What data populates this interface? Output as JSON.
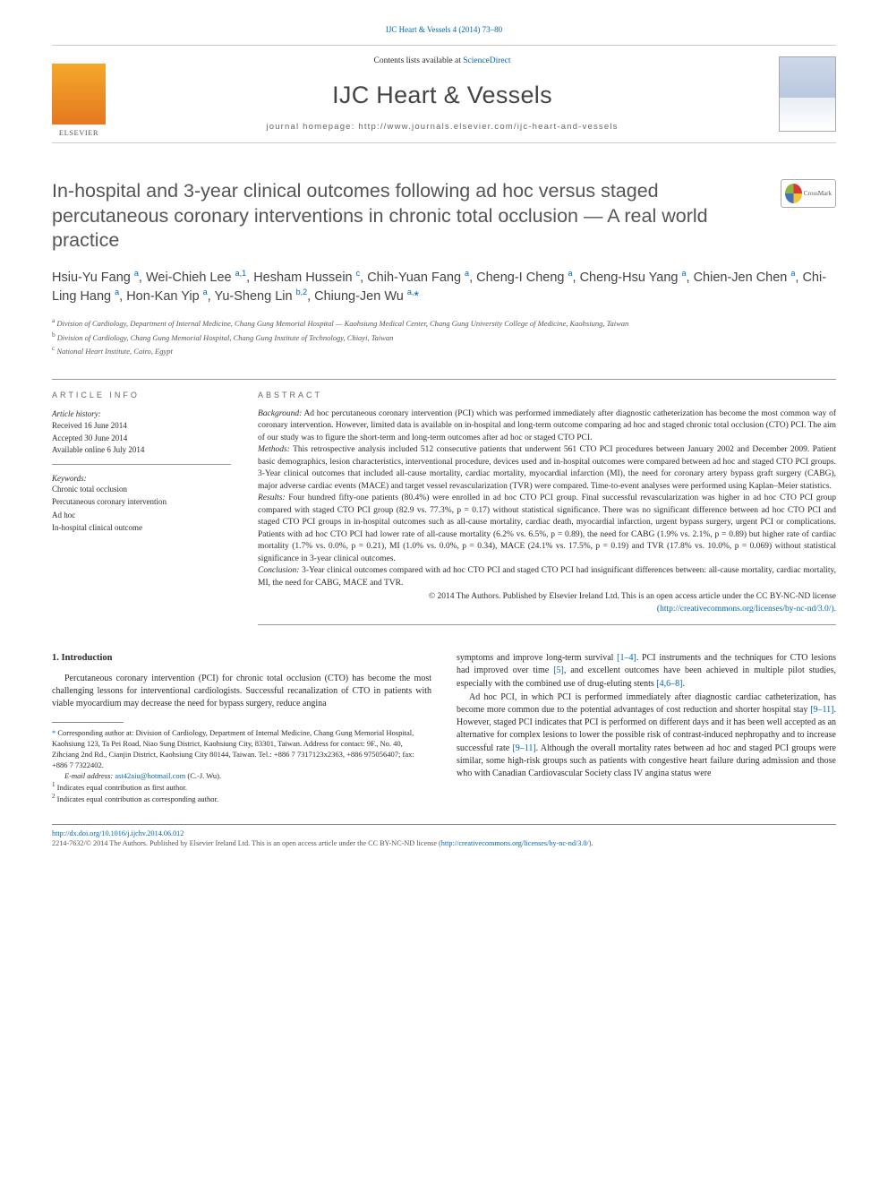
{
  "top_link": "IJC Heart & Vessels 4 (2014) 73–80",
  "header": {
    "contents_prefix": "Contents lists available at ",
    "science_direct": "ScienceDirect",
    "journal_name": "IJC Heart & Vessels",
    "homepage_prefix": "journal homepage: ",
    "homepage_url": "http://www.journals.elsevier.com/ijc-heart-and-vessels"
  },
  "crossmark_label": "CrossMark",
  "title": "In-hospital and 3-year clinical outcomes following ad hoc versus staged percutaneous coronary interventions in chronic total occlusion — A real world practice",
  "authors_html": "Hsiu-Yu Fang <sup>a</sup>, Wei-Chieh Lee <sup>a,1</sup>, Hesham Hussein <sup>c</sup>, Chih-Yuan Fang <sup>a</sup>, Cheng-I Cheng <sup>a</sup>, Cheng-Hsu Yang <sup>a</sup>, Chien-Jen Chen <sup>a</sup>, Chi-Ling Hang <sup>a</sup>, Hon-Kan Yip <sup>a</sup>, Yu-Sheng Lin <sup>b,2</sup>, Chiung-Jen Wu <sup>a,</sup><span class='star-sup'>*</span>",
  "affiliations": [
    {
      "key": "a",
      "text": "Division of Cardiology, Department of Internal Medicine, Chang Gung Memorial Hospital — Kaohsiung Medical Center, Chang Gung University College of Medicine, Kaohsiung, Taiwan"
    },
    {
      "key": "b",
      "text": "Division of Cardiology, Chang Gung Memorial Hospital, Chang Gung Institute of Technology, Chiayi, Taiwan"
    },
    {
      "key": "c",
      "text": "National Heart Institute, Cairo, Egypt"
    }
  ],
  "article_info": {
    "heading": "ARTICLE INFO",
    "history_label": "Article history:",
    "received": "Received 16 June 2014",
    "accepted": "Accepted 30 June 2014",
    "online": "Available online 6 July 2014",
    "keywords_label": "Keywords:",
    "keywords": [
      "Chronic total occlusion",
      "Percutaneous coronary intervention",
      "Ad hoc",
      "In-hospital clinical outcome"
    ]
  },
  "abstract": {
    "heading": "ABSTRACT",
    "background_label": "Background:",
    "background": " Ad hoc percutaneous coronary intervention (PCI) which was performed immediately after diagnostic catheterization has become the most common way of coronary intervention. However, limited data is available on in-hospital and long-term outcome comparing ad hoc and staged chronic total occlusion (CTO) PCI. The aim of our study was to figure the short-term and long-term outcomes after ad hoc or staged CTO PCI.",
    "methods_label": "Methods:",
    "methods": " This retrospective analysis included 512 consecutive patients that underwent 561 CTO PCI procedures between January 2002 and December 2009. Patient basic demographics, lesion characteristics, interventional procedure, devices used and in-hospital outcomes were compared between ad hoc and staged CTO PCI groups. 3-Year clinical outcomes that included all-cause mortality, cardiac mortality, myocardial infarction (MI), the need for coronary artery bypass graft surgery (CABG), major adverse cardiac events (MACE) and target vessel revascularization (TVR) were compared. Time-to-event analyses were performed using Kaplan–Meier statistics.",
    "results_label": "Results:",
    "results": " Four hundred fifty-one patients (80.4%) were enrolled in ad hoc CTO PCI group. Final successful revascularization was higher in ad hoc CTO PCI group compared with staged CTO PCI group (82.9 vs. 77.3%, p = 0.17) without statistical significance. There was no significant difference between ad hoc CTO PCI and staged CTO PCI groups in in-hospital outcomes such as all-cause mortality, cardiac death, myocardial infarction, urgent bypass surgery, urgent PCI or complications. Patients with ad hoc CTO PCI had lower rate of all-cause mortality (6.2% vs. 6.5%, p = 0.89), the need for CABG (1.9% vs. 2.1%, p = 0.89) but higher rate of cardiac mortality (1.7% vs. 0.0%, p = 0.21), MI (1.0% vs. 0.0%, p = 0.34), MACE (24.1% vs. 17.5%, p = 0.19) and TVR (17.8% vs. 10.0%, p = 0.069) without statistical significance in 3-year clinical outcomes.",
    "conclusion_label": "Conclusion:",
    "conclusion": " 3-Year clinical outcomes compared with ad hoc CTO PCI and staged CTO PCI had insignificant differences between: all-cause mortality, cardiac mortality, MI, the need for CABG, MACE and TVR.",
    "copyright": "© 2014 The Authors. Published by Elsevier Ireland Ltd. This is an open access article under the CC BY-NC-ND license",
    "license_url": "(http://creativecommons.org/licenses/by-nc-nd/3.0/)."
  },
  "section1_title": "1. Introduction",
  "col_left_p1": "Percutaneous coronary intervention (PCI) for chronic total occlusion (CTO) has become the most challenging lessons for interventional cardiologists. Successful recanalization of CTO in patients with viable myocardium may decrease the need for bypass surgery, reduce angina",
  "col_right_p1_a": "symptoms and improve long-term survival ",
  "col_right_p1_ref1": "[1–4]",
  "col_right_p1_b": ". PCI instruments and the techniques for CTO lesions had improved over time ",
  "col_right_p1_ref2": "[5]",
  "col_right_p1_c": ", and excellent outcomes have been achieved in multiple pilot studies, especially with the combined use of drug-eluting stents ",
  "col_right_p1_ref3": "[4,6–8]",
  "col_right_p1_d": ".",
  "col_right_p2_a": "Ad hoc PCI, in which PCI is performed immediately after diagnostic cardiac catheterization, has become more common due to the potential advantages of cost reduction and shorter hospital stay ",
  "col_right_p2_ref1": "[9–11]",
  "col_right_p2_b": ". However, staged PCI indicates that PCI is performed on different days and it has been well accepted as an alternative for complex lesions to lower the possible risk of contrast-induced nephropathy and to increase successful rate ",
  "col_right_p2_ref2": "[9–11]",
  "col_right_p2_c": ". Although the overall mortality rates between ad hoc and staged PCI groups were similar, some high-risk groups such as patients with congestive heart failure during admission and those who with Canadian Cardiovascular Society class IV angina status were",
  "footnotes": {
    "corresponding": "Corresponding author at: Division of Cardiology, Department of Internal Medicine, Chang Gung Memorial Hospital, Kaohsiung 123, Ta Pei Road, Niao Sung District, Kaohsiung City, 83301, Taiwan. Address for contact: 9F., No. 40, Zihciang 2nd Rd., Cianjin District, Kaohsiung City 80144, Taiwan. Tel.: +886 7 7317123x2363, +886 975056407; fax: +886 7 7322402.",
    "email_label": "E-mail address:",
    "email": "ast42aiu@hotmail.com",
    "email_who": " (C.-J. Wu).",
    "f1": "Indicates equal contribution as first author.",
    "f2": "Indicates equal contribution as corresponding author."
  },
  "footer": {
    "doi": "http://dx.doi.org/10.1016/j.ijchv.2014.06.012",
    "issn_line": "2214-7632/© 2014 The Authors. Published by Elsevier Ireland Ltd. This is an open access article under the CC BY-NC-ND license (",
    "license_url": "http://creativecommons.org/licenses/by-nc-nd/3.0/",
    "close": ")."
  }
}
